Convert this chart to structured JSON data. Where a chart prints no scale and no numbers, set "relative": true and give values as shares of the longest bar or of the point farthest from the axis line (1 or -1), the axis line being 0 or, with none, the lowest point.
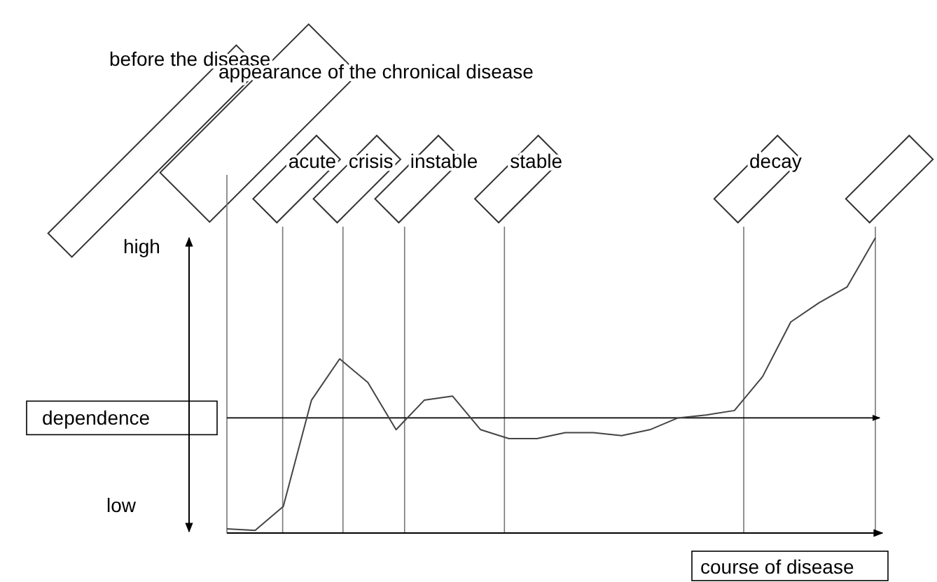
{
  "chart_data": {
    "type": "line",
    "relative": true,
    "xlabel": "course of disease",
    "marker": "none",
    "line_style": "solid",
    "categories": [
      null,
      null,
      null,
      null,
      null,
      null,
      null,
      null,
      null,
      null,
      null,
      null,
      null,
      null,
      null,
      null,
      null,
      null,
      null,
      null,
      null,
      null,
      null,
      null
    ],
    "series": [
      {
        "color": "#444444",
        "values": [
          0.014,
          0.009,
          0.09,
          0.45,
          0.59,
          0.51,
          0.35,
          0.45,
          0.464,
          0.35,
          0.32,
          0.32,
          0.34,
          0.34,
          0.33,
          0.35,
          0.39,
          0.4,
          0.415,
          0.53,
          0.715,
          0.78,
          0.834,
          1
        ]
      }
    ],
    "ref_lines": [
      {
        "axis": "y",
        "value": 0.39,
        "label": "dependence"
      }
    ],
    "annotations": [
      {
        "text": "before the disease"
      },
      {
        "text": "appearance of the chronical disease"
      },
      {
        "text": "acute"
      },
      {
        "text": "crisis"
      },
      {
        "text": "instable"
      },
      {
        "text": "stable"
      },
      {
        "text": "decay"
      },
      {
        "text": "high"
      },
      {
        "text": "low"
      }
    ]
  }
}
